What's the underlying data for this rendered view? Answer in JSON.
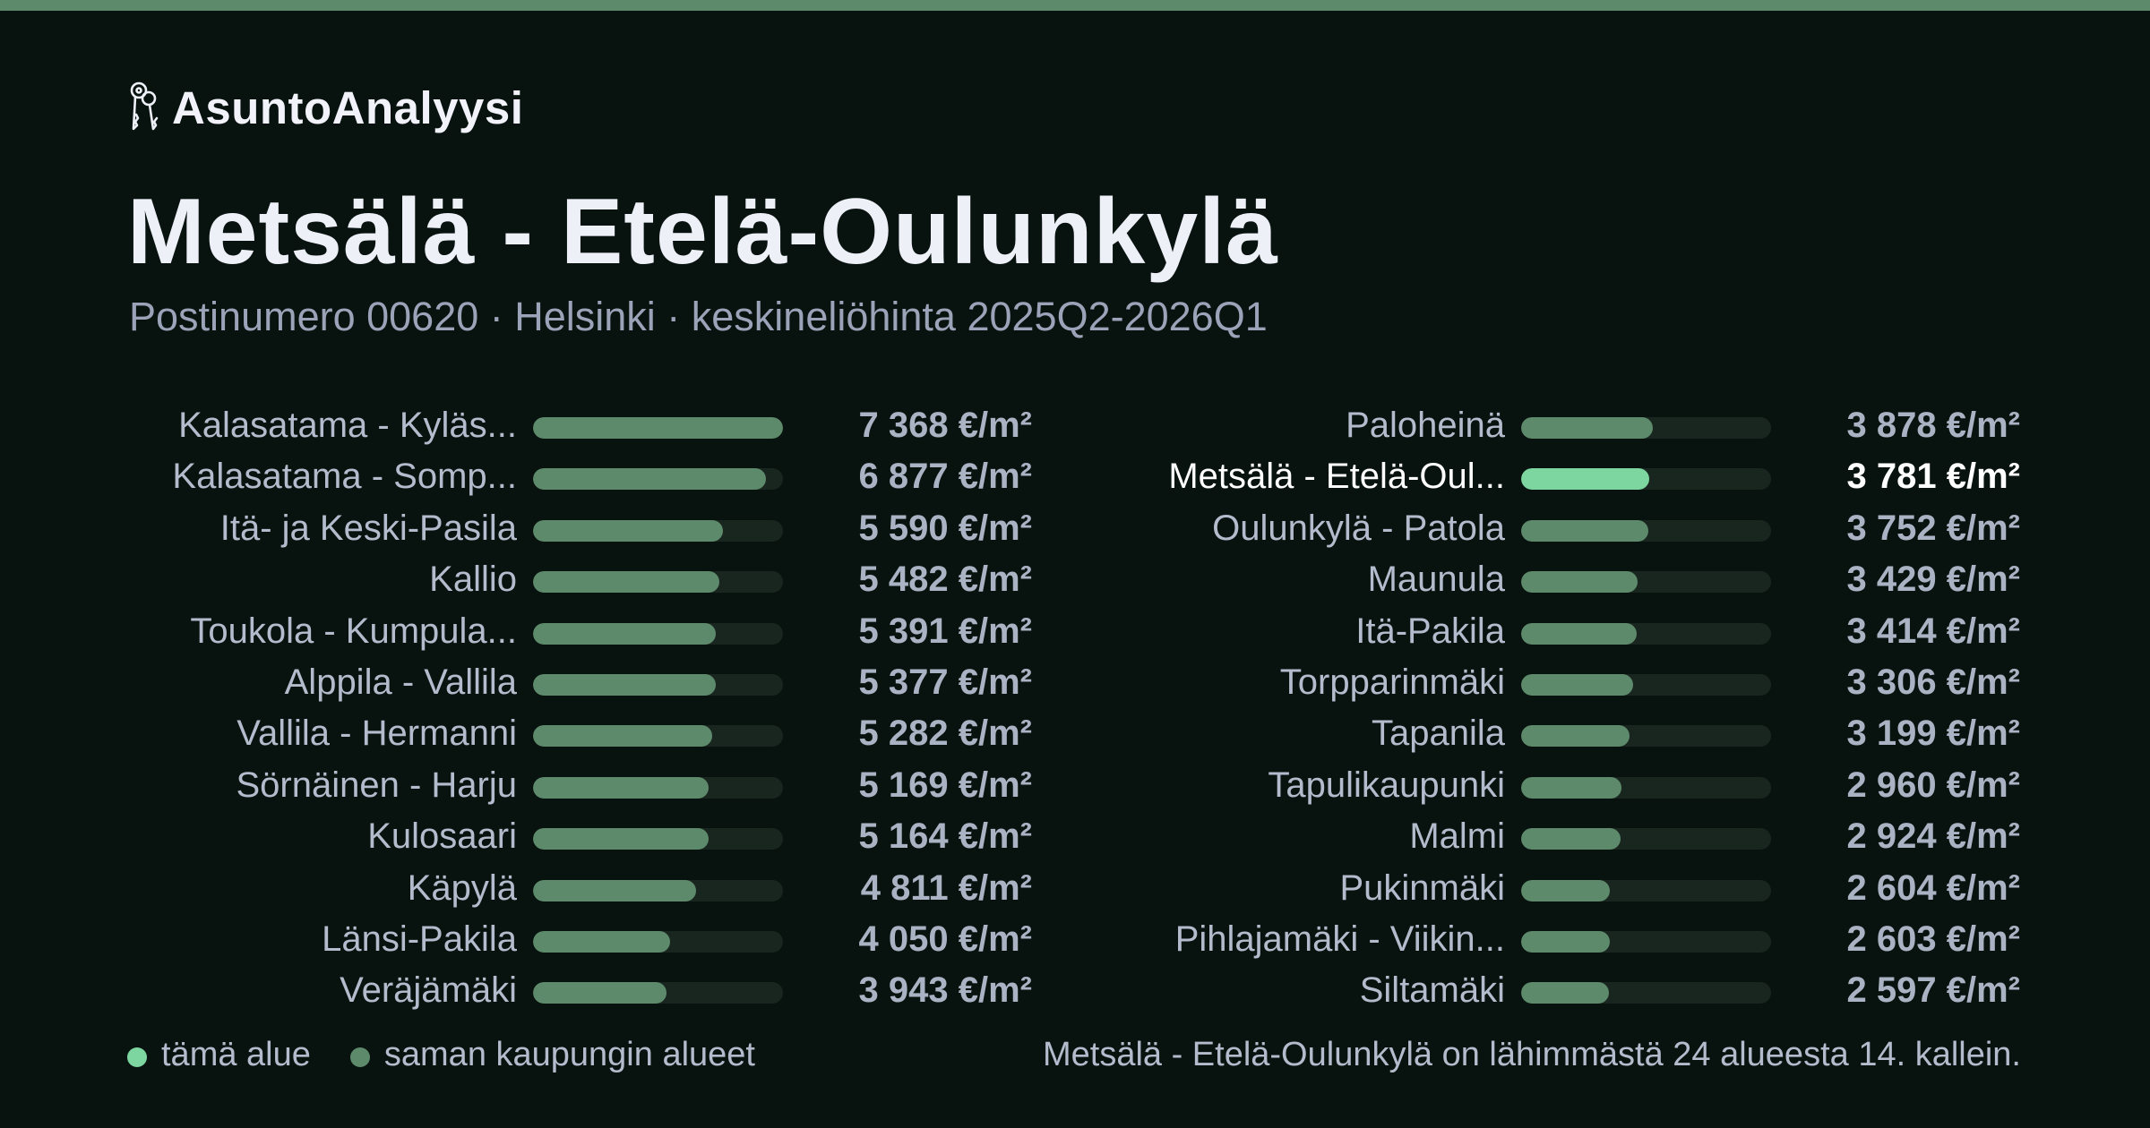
{
  "brand": {
    "name": "AsuntoAnalyysi",
    "icon": "keys-icon"
  },
  "title": "Metsälä - Etelä-Oulunkylä",
  "subtitle": "Postinumero 00620 · Helsinki · keskineliöhinta 2025Q2-2026Q1",
  "colors": {
    "background": "#08130f",
    "accent_bar": "#5e8a6c",
    "highlight": "#7dd6a0",
    "track": "#19261f"
  },
  "chart_data": {
    "type": "bar",
    "orientation": "horizontal",
    "unit": "€/m²",
    "max_value": 7368,
    "highlight_label": "Metsälä - Etelä-Oul...",
    "items": [
      {
        "label": "Kalasatama - Kyläs...",
        "value": 7368,
        "value_label": "7 368 €/m²"
      },
      {
        "label": "Kalasatama - Somp...",
        "value": 6877,
        "value_label": "6 877 €/m²"
      },
      {
        "label": "Itä- ja Keski-Pasila",
        "value": 5590,
        "value_label": "5 590 €/m²"
      },
      {
        "label": "Kallio",
        "value": 5482,
        "value_label": "5 482 €/m²"
      },
      {
        "label": "Toukola - Kumpula...",
        "value": 5391,
        "value_label": "5 391 €/m²"
      },
      {
        "label": "Alppila - Vallila",
        "value": 5377,
        "value_label": "5 377 €/m²"
      },
      {
        "label": "Vallila - Hermanni",
        "value": 5282,
        "value_label": "5 282 €/m²"
      },
      {
        "label": "Sörnäinen - Harju",
        "value": 5169,
        "value_label": "5 169 €/m²"
      },
      {
        "label": "Kulosaari",
        "value": 5164,
        "value_label": "5 164 €/m²"
      },
      {
        "label": "Käpylä",
        "value": 4811,
        "value_label": "4 811 €/m²"
      },
      {
        "label": "Länsi-Pakila",
        "value": 4050,
        "value_label": "4 050 €/m²"
      },
      {
        "label": "Veräjämäki",
        "value": 3943,
        "value_label": "3 943 €/m²"
      },
      {
        "label": "Paloheinä",
        "value": 3878,
        "value_label": "3 878 €/m²"
      },
      {
        "label": "Metsälä - Etelä-Oul...",
        "value": 3781,
        "value_label": "3 781 €/m²"
      },
      {
        "label": "Oulunkylä - Patola",
        "value": 3752,
        "value_label": "3 752 €/m²"
      },
      {
        "label": "Maunula",
        "value": 3429,
        "value_label": "3 429 €/m²"
      },
      {
        "label": "Itä-Pakila",
        "value": 3414,
        "value_label": "3 414 €/m²"
      },
      {
        "label": "Torpparinmäki",
        "value": 3306,
        "value_label": "3 306 €/m²"
      },
      {
        "label": "Tapanila",
        "value": 3199,
        "value_label": "3 199 €/m²"
      },
      {
        "label": "Tapulikaupunki",
        "value": 2960,
        "value_label": "2 960 €/m²"
      },
      {
        "label": "Malmi",
        "value": 2924,
        "value_label": "2 924 €/m²"
      },
      {
        "label": "Pukinmäki",
        "value": 2604,
        "value_label": "2 604 €/m²"
      },
      {
        "label": "Pihlajamäki - Viikin...",
        "value": 2603,
        "value_label": "2 603 €/m²"
      },
      {
        "label": "Siltamäki",
        "value": 2597,
        "value_label": "2 597 €/m²"
      }
    ],
    "legend": [
      {
        "key": "this",
        "label": "tämä alue"
      },
      {
        "key": "same",
        "label": "saman kaupungin alueet"
      }
    ],
    "footnote": "Metsälä - Etelä-Oulunkylä on lähimmästä 24 alueesta 14. kallein."
  }
}
